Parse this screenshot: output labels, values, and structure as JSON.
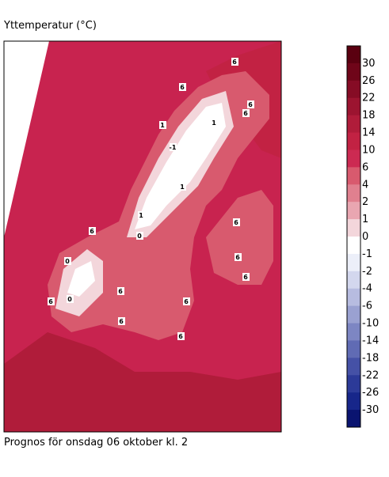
{
  "title": "Yttemperatur (°C)",
  "caption": "Prognos för onsdag 06 oktober kl. 2",
  "colorbar": {
    "levels": [
      30,
      26,
      22,
      18,
      14,
      10,
      6,
      4,
      2,
      1,
      0,
      -1,
      -2,
      -4,
      -6,
      -10,
      -14,
      -18,
      -22,
      -26,
      -30
    ],
    "colors": [
      "#5a0010",
      "#6f0519",
      "#860c25",
      "#9c1430",
      "#b01c3a",
      "#c22243",
      "#cc2a52",
      "#d85a6e",
      "#e0808f",
      "#e9a6b1",
      "#f3d6db",
      "#ffffff",
      "#eceff9",
      "#d3d7ee",
      "#b7bce0",
      "#9aa1d1",
      "#7d86c3",
      "#606bb4",
      "#4551a6",
      "#2c3a98",
      "#17268a",
      "#0a1470"
    ]
  },
  "contour_labels": [
    "6",
    "6",
    "1",
    "6",
    "6",
    "1",
    "-1",
    "1",
    "1",
    "0",
    "0",
    "6",
    "6",
    "6",
    "0",
    "6",
    "6",
    "6",
    "6",
    "6",
    "6"
  ]
}
